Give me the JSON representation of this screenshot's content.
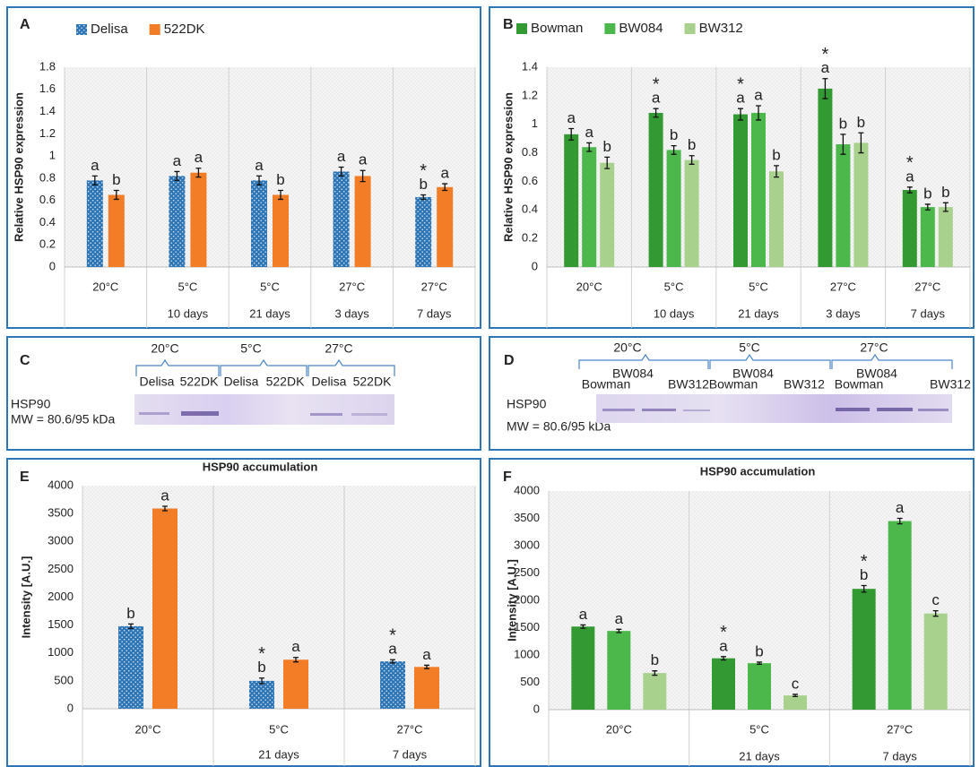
{
  "chart_data": [
    {
      "type": "bar",
      "panel": "A",
      "ylabel": "Relative HSP90 expression",
      "categories": [
        "20°C",
        "5°C",
        "5°C",
        "27°C",
        "27°C"
      ],
      "sublabels": [
        null,
        "10 days",
        "21 days",
        "3 days",
        "7 days"
      ],
      "ylim": [
        0,
        1.8
      ],
      "yticks": [
        0,
        0.2,
        0.4,
        0.6,
        0.8,
        1,
        1.2,
        1.4,
        1.6,
        1.8
      ],
      "grid": false,
      "series": [
        {
          "name": "Delisa",
          "color": "#2e75b6",
          "pattern": "dots",
          "values": [
            0.78,
            0.82,
            0.78,
            0.86,
            0.63
          ],
          "errors": [
            0.04,
            0.04,
            0.04,
            0.04,
            0.02
          ],
          "letters": [
            "a",
            "a",
            "a",
            "a",
            "b"
          ],
          "stars": [
            null,
            null,
            null,
            null,
            "*"
          ]
        },
        {
          "name": "522DK",
          "color": "#f27d26",
          "values": [
            0.65,
            0.85,
            0.65,
            0.82,
            0.72
          ],
          "errors": [
            0.04,
            0.04,
            0.04,
            0.05,
            0.03
          ],
          "letters": [
            "b",
            "a",
            "b",
            "a",
            "a"
          ],
          "stars": [
            null,
            null,
            null,
            null,
            null
          ]
        }
      ]
    },
    {
      "type": "bar",
      "panel": "B",
      "ylabel": "Relative HSP90 expression",
      "categories": [
        "20°C",
        "5°C",
        "5°C",
        "27°C",
        "27°C"
      ],
      "sublabels": [
        null,
        "10 days",
        "21 days",
        "3 days",
        "7 days"
      ],
      "ylim": [
        0,
        1.4
      ],
      "yticks": [
        0,
        0.2,
        0.4,
        0.6,
        0.8,
        1,
        1.2,
        1.4
      ],
      "grid": false,
      "series": [
        {
          "name": "Bowman",
          "color": "#339933",
          "values": [
            0.93,
            1.08,
            1.07,
            1.25,
            0.54
          ],
          "errors": [
            0.04,
            0.03,
            0.04,
            0.07,
            0.02
          ],
          "letters": [
            "a",
            "a",
            "a",
            "a",
            "a"
          ],
          "stars": [
            null,
            "*",
            "*",
            "*",
            "*"
          ]
        },
        {
          "name": "BW084",
          "color": "#4cb84c",
          "values": [
            0.84,
            0.82,
            1.08,
            0.86,
            0.42
          ],
          "errors": [
            0.03,
            0.03,
            0.05,
            0.07,
            0.02
          ],
          "letters": [
            "a",
            "b",
            "a",
            "b",
            "b"
          ],
          "stars": [
            null,
            null,
            null,
            null,
            null
          ]
        },
        {
          "name": "BW312",
          "color": "#a9d18e",
          "values": [
            0.73,
            0.75,
            0.67,
            0.87,
            0.42
          ],
          "errors": [
            0.04,
            0.03,
            0.04,
            0.07,
            0.03
          ],
          "letters": [
            "b",
            "b",
            "b",
            "b",
            "b"
          ],
          "stars": [
            null,
            null,
            null,
            null,
            null
          ]
        }
      ]
    },
    {
      "type": "bar",
      "panel": "E",
      "title": "HSP90 accumulation",
      "ylabel": "Intensity [A.U.]",
      "categories": [
        "20°C",
        "5°C",
        "27°C"
      ],
      "sublabels": [
        null,
        "21 days",
        "7 days"
      ],
      "ylim": [
        0,
        4000
      ],
      "yticks": [
        0,
        500,
        1000,
        1500,
        2000,
        2500,
        3000,
        3500,
        4000
      ],
      "grid": false,
      "series": [
        {
          "name": "Delisa",
          "color": "#2e75b6",
          "pattern": "dots",
          "values": [
            1480,
            500,
            850
          ],
          "errors": [
            40,
            50,
            30
          ],
          "letters": [
            "b",
            "b",
            "a"
          ],
          "stars": [
            null,
            "*",
            "*"
          ]
        },
        {
          "name": "522DK",
          "color": "#f27d26",
          "values": [
            3590,
            880,
            750
          ],
          "errors": [
            40,
            40,
            30
          ],
          "letters": [
            "a",
            "a",
            "a"
          ],
          "stars": [
            null,
            null,
            null
          ]
        }
      ]
    },
    {
      "type": "bar",
      "panel": "F",
      "title": "HSP90 accumulation",
      "ylabel": "Intensity [A.U.]",
      "categories": [
        "20°C",
        "5°C",
        "27°C"
      ],
      "sublabels": [
        null,
        "21 days",
        "7 days"
      ],
      "ylim": [
        0,
        4000
      ],
      "yticks": [
        0,
        500,
        1000,
        1500,
        2000,
        2500,
        3000,
        3500,
        4000
      ],
      "grid": false,
      "series": [
        {
          "name": "Bowman",
          "color": "#339933",
          "values": [
            1520,
            940,
            2210
          ],
          "errors": [
            30,
            30,
            60
          ],
          "letters": [
            "a",
            "a",
            "b"
          ],
          "stars": [
            null,
            "*",
            "*"
          ]
        },
        {
          "name": "BW084",
          "color": "#4cb84c",
          "values": [
            1440,
            850,
            3450
          ],
          "errors": [
            30,
            20,
            50
          ],
          "letters": [
            "a",
            "b",
            "a"
          ],
          "stars": [
            null,
            null,
            null
          ]
        },
        {
          "name": "BW312",
          "color": "#a9d18e",
          "values": [
            670,
            260,
            1760
          ],
          "errors": [
            40,
            20,
            50
          ],
          "letters": [
            "b",
            "c",
            "c"
          ],
          "stars": [
            null,
            null,
            null
          ]
        }
      ]
    }
  ],
  "blots": [
    {
      "panel": "C",
      "temperatures": [
        "20°C",
        "5°C",
        "27°C"
      ],
      "lanes": [
        "Delisa",
        "522DK",
        "Delisa",
        "522DK",
        "Delisa",
        "522DK"
      ],
      "protein": "HSP90",
      "mw": "MW = 80.6/95 kDa"
    },
    {
      "panel": "D",
      "temperatures": [
        "20°C",
        "5°C",
        "27°C"
      ],
      "lanes": [
        "Bowman",
        "BW084",
        "BW312",
        "Bowman",
        "BW084",
        "BW312",
        "Bowman",
        "BW084",
        "BW312"
      ],
      "protein": "HSP90",
      "mw": "MW = 80.6/95 kDa"
    }
  ]
}
